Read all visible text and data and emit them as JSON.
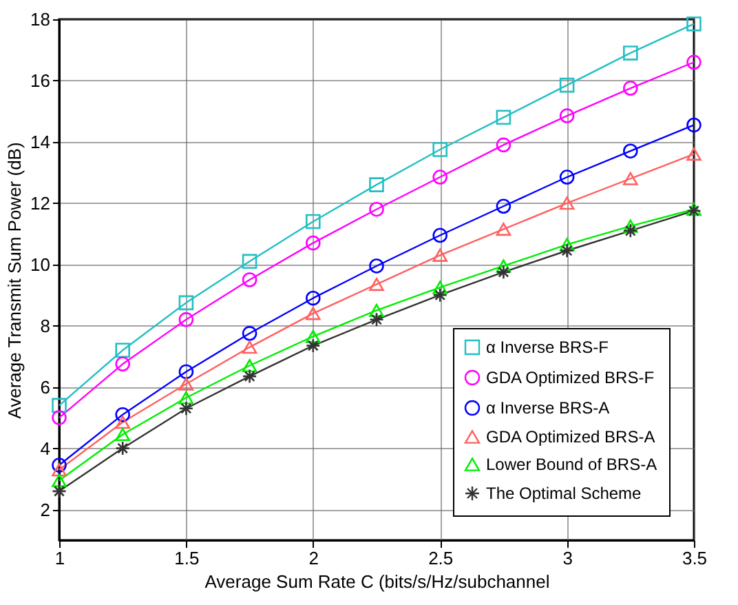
{
  "chart_data": {
    "type": "line",
    "xlabel": "Average Sum Rate C (bits/s/Hz/subchannel",
    "ylabel": "Average Transmit Sum Power (dB)",
    "x": [
      1,
      1.25,
      1.5,
      1.75,
      2,
      2.25,
      2.5,
      2.75,
      3,
      3.25,
      3.5
    ],
    "series": [
      {
        "name": "α Inverse BRS-F",
        "color": "#22bfc4",
        "marker": "square",
        "values": [
          5.4,
          7.2,
          8.75,
          10.1,
          11.4,
          12.6,
          13.75,
          14.8,
          15.85,
          16.9,
          17.85
        ]
      },
      {
        "name": "GDA Optimized BRS-F",
        "color": "#ff00ff",
        "marker": "circle",
        "values": [
          5.0,
          6.75,
          8.2,
          9.5,
          10.7,
          11.8,
          12.85,
          13.9,
          14.85,
          15.75,
          16.6
        ]
      },
      {
        "name": "α Inverse BRS-A",
        "color": "#0000ff",
        "marker": "circle",
        "values": [
          3.45,
          5.1,
          6.5,
          7.75,
          8.9,
          9.95,
          10.95,
          11.9,
          12.85,
          13.7,
          14.55
        ]
      },
      {
        "name": "GDA Optimized BRS-A",
        "color": "#ff6060",
        "marker": "triangle",
        "values": [
          3.3,
          4.85,
          6.1,
          7.3,
          8.4,
          9.35,
          10.3,
          11.15,
          12.0,
          12.8,
          13.6
        ]
      },
      {
        "name": "Lower Bound of BRS-A",
        "color": "#00ee00",
        "marker": "triangle",
        "values": [
          2.95,
          4.45,
          5.65,
          6.7,
          7.65,
          8.5,
          9.25,
          9.95,
          10.65,
          11.25,
          11.8
        ]
      },
      {
        "name": "The Optimal Scheme",
        "color": "#333333",
        "marker": "cross",
        "values": [
          2.6,
          4.0,
          5.3,
          6.35,
          7.35,
          8.2,
          9.0,
          9.75,
          10.45,
          11.1,
          11.75
        ]
      }
    ],
    "xlim": [
      1,
      3.5
    ],
    "xticks": [
      1,
      1.5,
      2,
      2.5,
      3,
      3.5
    ],
    "ylim": [
      1,
      18
    ],
    "yticks": [
      2,
      4,
      6,
      8,
      10,
      12,
      14,
      16,
      18
    ],
    "grid": true,
    "legend": "bottom right"
  }
}
